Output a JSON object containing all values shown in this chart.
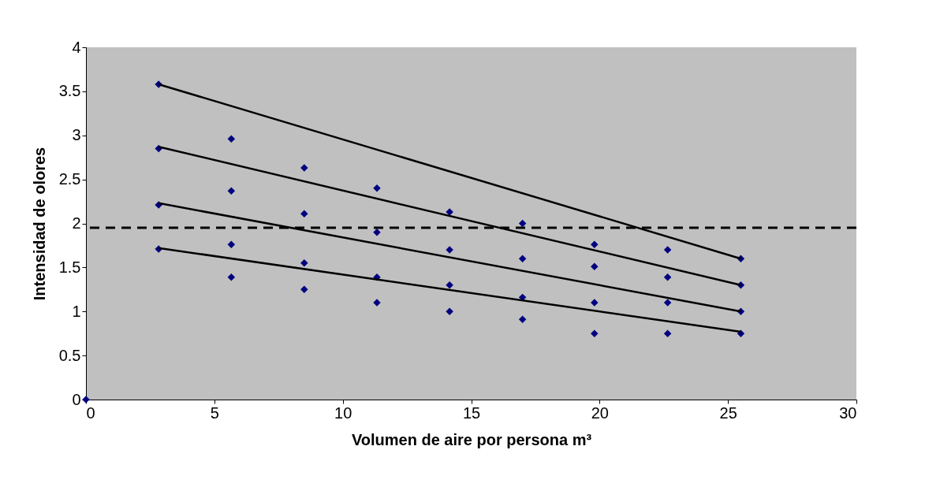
{
  "chart_data": {
    "type": "scatter",
    "xlabel": "Volumen de aire por persona m³",
    "ylabel": "Intensidad de olores",
    "xlim": [
      0,
      30
    ],
    "xticks": [
      0,
      5,
      10,
      15,
      20,
      25,
      30
    ],
    "ylim": [
      0,
      4
    ],
    "yticks": [
      0,
      0.5,
      1,
      1.5,
      2,
      2.5,
      3,
      3.5,
      4
    ],
    "grid": false,
    "marker": "diamond",
    "series": [
      {
        "color": "#000080",
        "x": [
          0,
          2.83,
          2.83,
          2.83,
          2.83,
          5.66,
          5.66,
          5.66,
          5.66,
          8.5,
          8.5,
          8.5,
          8.5,
          11.33,
          11.33,
          11.33,
          11.33,
          14.16,
          14.16,
          14.16,
          14.16,
          17,
          17,
          17,
          17,
          19.8,
          19.8,
          19.8,
          19.8,
          22.65,
          22.65,
          22.65,
          22.65,
          25.5,
          25.5,
          25.5,
          25.5
        ],
        "values": [
          0,
          3.58,
          2.85,
          2.21,
          1.71,
          2.96,
          2.37,
          1.76,
          1.39,
          2.63,
          2.11,
          1.55,
          1.25,
          2.4,
          1.9,
          1.39,
          1.1,
          2.13,
          1.7,
          1.3,
          1.0,
          2.0,
          1.6,
          1.16,
          0.91,
          1.76,
          1.51,
          1.1,
          0.75,
          1.7,
          1.39,
          1.1,
          0.75,
          1.6,
          1.3,
          1.0,
          0.75
        ]
      },
      {
        "type": "line",
        "color": "#000000",
        "x": [
          2.83,
          25.5
        ],
        "values": [
          3.58,
          1.6
        ],
        "marker": "none"
      },
      {
        "type": "line",
        "color": "#000000",
        "x": [
          2.83,
          25.5
        ],
        "values": [
          2.87,
          1.3
        ],
        "marker": "none"
      },
      {
        "type": "line",
        "color": "#000000",
        "x": [
          2.83,
          25.5
        ],
        "values": [
          2.23,
          1.0
        ],
        "marker": "none"
      },
      {
        "type": "line",
        "color": "#000000",
        "x": [
          2.83,
          25.5
        ],
        "values": [
          1.72,
          0.77
        ],
        "marker": "none"
      }
    ],
    "ref_lines": [
      {
        "axis": "y",
        "value": 1.95,
        "color": "#000000",
        "line_style": "dashed"
      }
    ]
  }
}
